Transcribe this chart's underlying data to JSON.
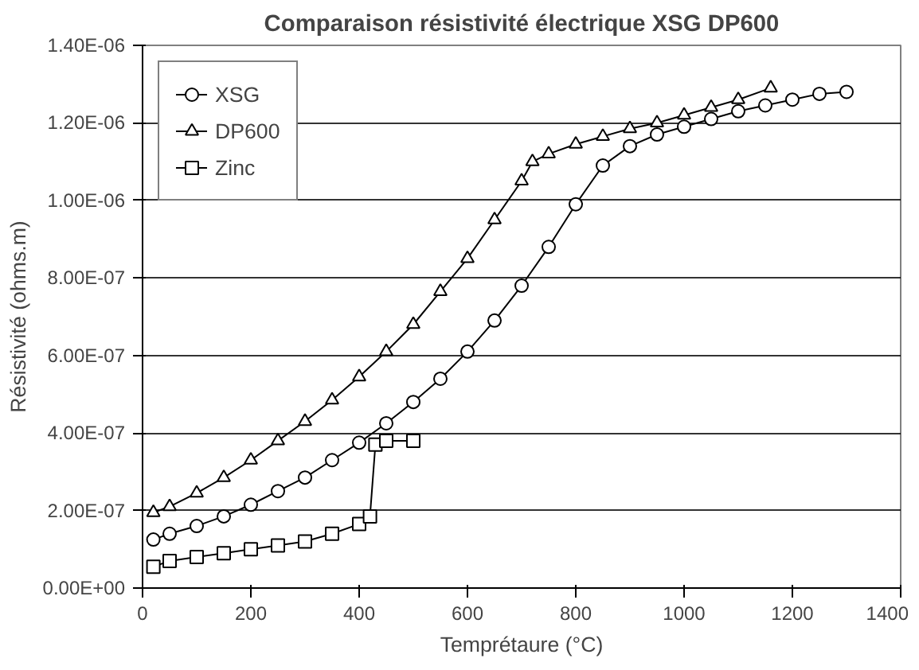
{
  "chart_data": {
    "type": "line",
    "title": "Comparaison résistivité électrique XSG DP600",
    "xlabel": "Temprétaure (°C)",
    "ylabel": "Résistivité (ohms.m)",
    "xlim": [
      0,
      1400
    ],
    "xticks": [
      0,
      200,
      400,
      600,
      800,
      1000,
      1200,
      1400
    ],
    "ylim": [
      0,
      1.4e-06
    ],
    "yticks": [
      {
        "value": 0,
        "label": "0.00E+00"
      },
      {
        "value": 2e-07,
        "label": "2.00E-07"
      },
      {
        "value": 4e-07,
        "label": "4.00E-07"
      },
      {
        "value": 6e-07,
        "label": "6.00E-07"
      },
      {
        "value": 8e-07,
        "label": "8.00E-07"
      },
      {
        "value": 1e-06,
        "label": "1.00E-06"
      },
      {
        "value": 1.2e-06,
        "label": "1.20E-06"
      },
      {
        "value": 1.4e-06,
        "label": "1.40E-06"
      }
    ],
    "grid": "y",
    "legend": "top left",
    "line_style": "solid",
    "series": [
      {
        "name": "XSG",
        "color": "#000000",
        "marker": "circle",
        "x": [
          20,
          50,
          100,
          150,
          200,
          250,
          300,
          350,
          400,
          450,
          500,
          550,
          600,
          650,
          700,
          750,
          800,
          850,
          900,
          950,
          1000,
          1050,
          1100,
          1150,
          1200,
          1250,
          1300
        ],
        "values": [
          1.25e-07,
          1.4e-07,
          1.6e-07,
          1.85e-07,
          2.15e-07,
          2.5e-07,
          2.85e-07,
          3.3e-07,
          3.75e-07,
          4.25e-07,
          4.8e-07,
          5.4e-07,
          6.1e-07,
          6.9e-07,
          7.8e-07,
          8.8e-07,
          9.9e-07,
          1.09e-06,
          1.14e-06,
          1.17e-06,
          1.19e-06,
          1.21e-06,
          1.23e-06,
          1.245e-06,
          1.26e-06,
          1.275e-06,
          1.28e-06
        ]
      },
      {
        "name": "DP600",
        "color": "#000000",
        "marker": "triangle",
        "x": [
          20,
          50,
          100,
          150,
          200,
          250,
          300,
          350,
          400,
          450,
          500,
          550,
          600,
          650,
          700,
          720,
          750,
          800,
          850,
          900,
          950,
          1000,
          1050,
          1100,
          1160
        ],
        "values": [
          1.95e-07,
          2.1e-07,
          2.45e-07,
          2.85e-07,
          3.3e-07,
          3.8e-07,
          4.3e-07,
          4.85e-07,
          5.45e-07,
          6.1e-07,
          6.8e-07,
          7.65e-07,
          8.5e-07,
          9.5e-07,
          1.05e-06,
          1.1e-06,
          1.12e-06,
          1.145e-06,
          1.165e-06,
          1.185e-06,
          1.2e-06,
          1.22e-06,
          1.24e-06,
          1.26e-06,
          1.29e-06
        ]
      },
      {
        "name": "Zinc",
        "color": "#000000",
        "marker": "square",
        "x": [
          20,
          50,
          100,
          150,
          200,
          250,
          300,
          350,
          400,
          420,
          430,
          450,
          500
        ],
        "values": [
          5.5e-08,
          7e-08,
          8e-08,
          9e-08,
          1e-07,
          1.1e-07,
          1.2e-07,
          1.4e-07,
          1.65e-07,
          1.85e-07,
          3.7e-07,
          3.8e-07,
          3.8e-07
        ]
      }
    ]
  }
}
